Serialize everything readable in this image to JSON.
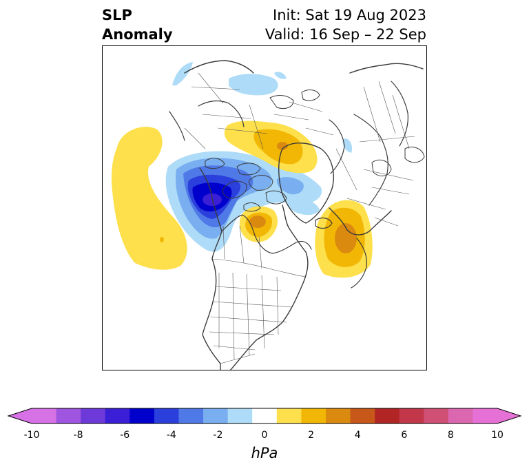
{
  "header": {
    "title_line1": "SLP",
    "title_line2": "Anomaly",
    "init_text": "Init: Sat 19 Aug 2023",
    "valid_text": "Valid: 16 Sep – 22 Sep"
  },
  "map": {
    "projection": "polar stereographic (North America / Arctic)",
    "features": [
      "coastlines",
      "country-borders",
      "state-borders"
    ],
    "anomaly_regions": [
      {
        "name": "north-pacific-high",
        "sign": "positive",
        "peak_hpa": 2
      },
      {
        "name": "arctic-canada-low",
        "sign": "negative",
        "peak_hpa": -6
      },
      {
        "name": "hudson-bay-high",
        "sign": "positive",
        "peak_hpa": 4
      },
      {
        "name": "north-atlantic-high",
        "sign": "positive",
        "peak_hpa": 4
      },
      {
        "name": "siberia-high",
        "sign": "positive",
        "peak_hpa": 3
      },
      {
        "name": "arctic-ocean-low",
        "sign": "negative",
        "peak_hpa": -2
      }
    ]
  },
  "colorbar": {
    "unit": "hPa",
    "extend": "both",
    "levels": [
      -10,
      -9,
      -8,
      -7,
      -6,
      -5,
      -4,
      -3,
      -2,
      -1,
      1,
      2,
      3,
      4,
      5,
      6,
      7,
      8,
      9,
      10
    ],
    "colors": [
      "#d671e6",
      "#9f55e0",
      "#6d3ad9",
      "#3b1fd6",
      "#0000cc",
      "#2a3fdb",
      "#4f79e6",
      "#79aef0",
      "#aedcf8",
      "#ffffff",
      "#fde04b",
      "#f2b705",
      "#db8a10",
      "#c8571a",
      "#b12624",
      "#c2384a",
      "#cf4f75",
      "#db67b0",
      "#e671d6"
    ],
    "under_color": "#d671e6",
    "over_color": "#e671d6",
    "tick_labels": [
      "-10",
      "-8",
      "-6",
      "-4",
      "-2",
      "0",
      "2",
      "4",
      "6",
      "8",
      "10"
    ]
  }
}
